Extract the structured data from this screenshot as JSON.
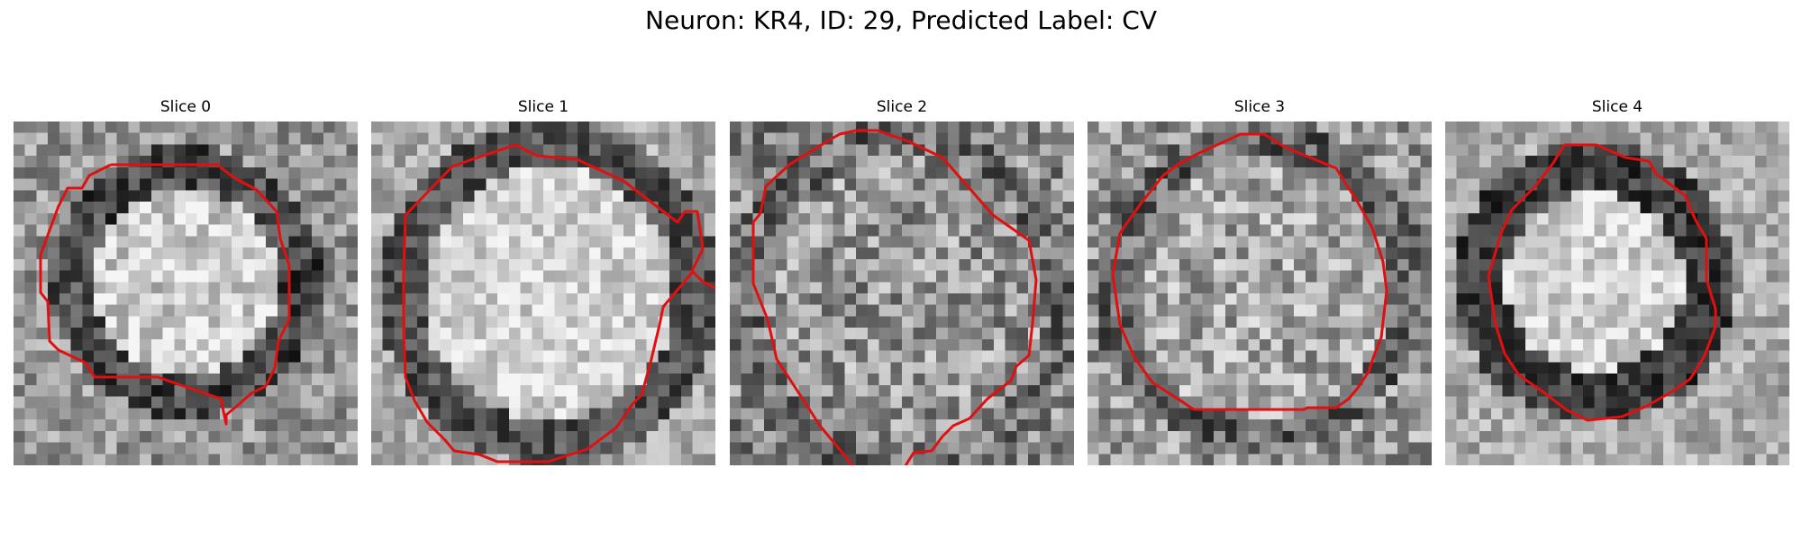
{
  "figure": {
    "title": "Neuron: KR4, ID: 29, Predicted Label: CV"
  },
  "colors": {
    "contour": "#e01010",
    "background": "#ffffff"
  },
  "panels": [
    {
      "title": "Slice 0",
      "structure": "dark ring around bright core"
    },
    {
      "title": "Slice 1",
      "structure": "dark ring around bright core"
    },
    {
      "title": "Slice 2",
      "structure": "noisy grey texture"
    },
    {
      "title": "Slice 3",
      "structure": "mottled grey texture"
    },
    {
      "title": "Slice 4",
      "structure": "dark ring around bright core"
    }
  ]
}
